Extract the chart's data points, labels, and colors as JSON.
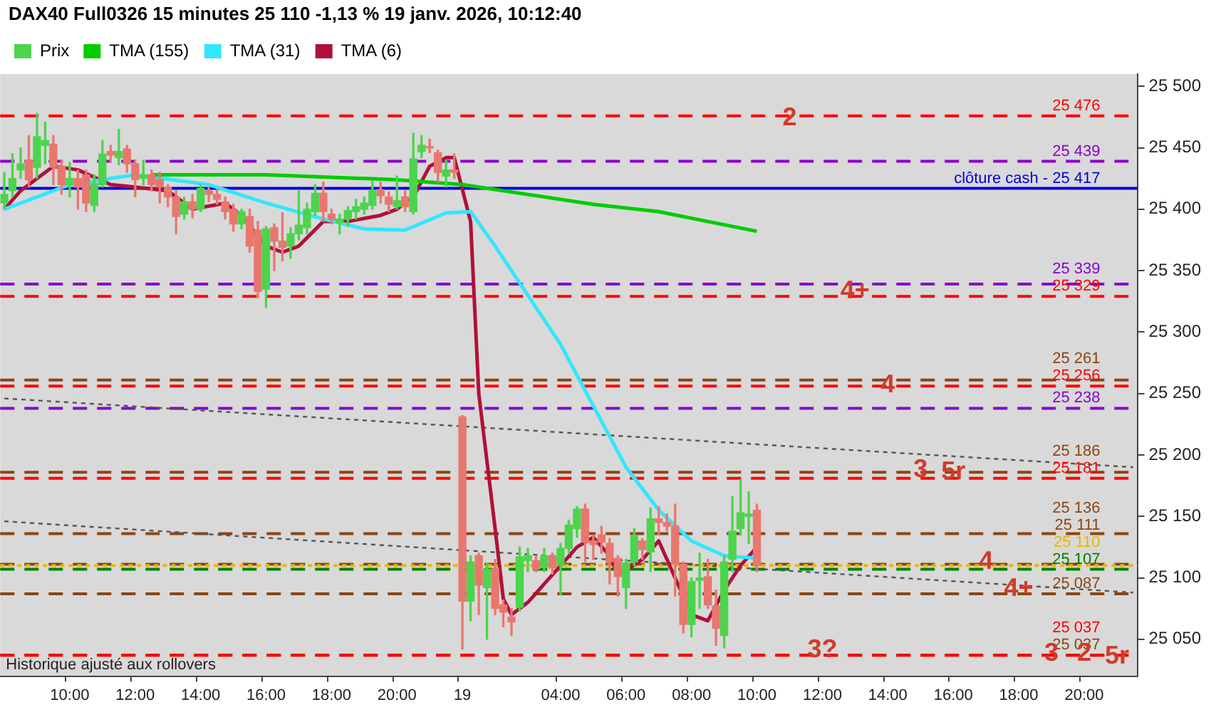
{
  "chart_data": {
    "type": "candlestick",
    "title": "DAX40 Full0326 15 minutes 25 110 -1,13 % 19 janv. 2026, 10:12:40",
    "categories": [
      null,
      null,
      null,
      null,
      null,
      null,
      null,
      null,
      "10:00",
      null,
      null,
      null,
      null,
      null,
      null,
      null,
      "12:00",
      null,
      null,
      null,
      null,
      null,
      null,
      null,
      "14:00",
      null,
      null,
      null,
      null,
      null,
      null,
      null,
      "16:00",
      null,
      null,
      null,
      null,
      null,
      null,
      null,
      "18:00",
      null,
      null,
      null,
      null,
      null,
      null,
      null,
      "20:00",
      null,
      null,
      null,
      null,
      null,
      null,
      null,
      "19",
      null,
      null,
      null,
      null,
      null,
      null,
      null,
      null,
      null,
      null,
      null,
      "04:00",
      null,
      null,
      null,
      null,
      null,
      null,
      null,
      "06:00",
      null,
      null,
      null,
      null,
      null,
      null,
      null,
      "08:00",
      null,
      null,
      null,
      null,
      null,
      null,
      null,
      "10:00",
      null,
      null,
      null,
      null,
      null,
      null,
      null,
      "12:00",
      null,
      null,
      null,
      null,
      null,
      null,
      null,
      "14:00",
      null,
      null,
      null,
      null,
      null,
      null,
      null,
      "16:00",
      null,
      null,
      null,
      null,
      null,
      null,
      null,
      "18:00",
      null,
      null,
      null,
      null,
      null,
      null,
      null,
      "20:00",
      null,
      null,
      null,
      null,
      null,
      null
    ],
    "ylim": [
      25020,
      25510
    ],
    "yticks": [
      {
        "value": 25050,
        "label": "25 050"
      },
      {
        "value": 25100,
        "label": "25 100"
      },
      {
        "value": 25150,
        "label": "25 150"
      },
      {
        "value": 25200,
        "label": "25 200"
      },
      {
        "value": 25250,
        "label": "25 250"
      },
      {
        "value": 25300,
        "label": "25 300"
      },
      {
        "value": 25350,
        "label": "25 350"
      },
      {
        "value": 25400,
        "label": "25 400"
      },
      {
        "value": 25450,
        "label": "25 450"
      },
      {
        "value": 25500,
        "label": "25 500"
      }
    ],
    "legend": "top left",
    "marker": "none",
    "series": [
      {
        "name": "Prix",
        "ohlc": [
          [
            25405,
            25430,
            25400,
            25412
          ],
          [
            25415,
            25445,
            25410,
            25425
          ],
          [
            25432,
            25450,
            25425,
            25437
          ],
          [
            25440,
            25460,
            25418,
            25424
          ],
          [
            25434,
            25478,
            25425,
            25459
          ],
          [
            25452,
            25471,
            25437,
            25456
          ],
          [
            25453,
            25460,
            25420,
            25434
          ],
          [
            25435,
            25440,
            25412,
            25420
          ],
          [
            25420,
            25438,
            25410,
            25425
          ],
          [
            25425,
            25432,
            25400,
            25418
          ],
          [
            25428,
            25432,
            25398,
            25405
          ],
          [
            25403,
            25428,
            25398,
            25421
          ],
          [
            25420,
            25456,
            25418,
            25445
          ],
          [
            25447,
            25452,
            25438,
            25444
          ],
          [
            25442,
            25465,
            25436,
            25447
          ],
          [
            25449,
            25452,
            25430,
            25437
          ],
          [
            25437,
            25440,
            25410,
            25424
          ],
          [
            25425,
            25440,
            25420,
            25428
          ],
          [
            25428,
            25432,
            25415,
            25420
          ],
          [
            25424,
            25430,
            25405,
            25418
          ],
          [
            25418,
            25420,
            25402,
            25410
          ],
          [
            25410,
            25415,
            25380,
            25394
          ],
          [
            25396,
            25410,
            25392,
            25406
          ],
          [
            25406,
            25412,
            25393,
            25400
          ],
          [
            25400,
            25420,
            25398,
            25417
          ],
          [
            25415,
            25418,
            25406,
            25412
          ],
          [
            25412,
            25416,
            25404,
            25408
          ],
          [
            25406,
            25410,
            25392,
            25398
          ],
          [
            25400,
            25404,
            25382,
            25388
          ],
          [
            25388,
            25400,
            25384,
            25398
          ],
          [
            25394,
            25400,
            25365,
            25370
          ],
          [
            25383,
            25390,
            25328,
            25333
          ],
          [
            25335,
            25386,
            25320,
            25384
          ],
          [
            25385,
            25388,
            25350,
            25374
          ],
          [
            25374,
            25397,
            25358,
            25369
          ],
          [
            25370,
            25385,
            25360,
            25380
          ],
          [
            25380,
            25415,
            25375,
            25387
          ],
          [
            25385,
            25405,
            25380,
            25400
          ],
          [
            25398,
            25420,
            25395,
            25413
          ],
          [
            25413,
            25422,
            25390,
            25398
          ],
          [
            25396,
            25400,
            25388,
            25392
          ],
          [
            25389,
            25396,
            25380,
            25392
          ],
          [
            25392,
            25402,
            25386,
            25399
          ],
          [
            25398,
            25408,
            25392,
            25402
          ],
          [
            25400,
            25410,
            25396,
            25405
          ],
          [
            25403,
            25423,
            25400,
            25415
          ],
          [
            25416,
            25422,
            25405,
            25411
          ],
          [
            25410,
            25414,
            25398,
            25404
          ],
          [
            25402,
            25427,
            25400,
            25407
          ],
          [
            25410,
            25415,
            25398,
            25402
          ],
          [
            25398,
            25462,
            25396,
            25441
          ],
          [
            25447,
            25460,
            25442,
            25452
          ],
          [
            25451,
            25457,
            25446,
            25450
          ],
          [
            25446,
            25448,
            25422,
            25430
          ],
          [
            25427,
            25440,
            25418,
            25432
          ],
          [
            25432,
            25445,
            25425,
            25430
          ],
          [
            25231,
            25232,
            25042,
            25081
          ],
          [
            25081,
            25118,
            25065,
            25113
          ],
          [
            25118,
            25120,
            25070,
            25094
          ],
          [
            25092,
            25112,
            25050,
            25107
          ],
          [
            25108,
            25115,
            25070,
            25075
          ],
          [
            25078,
            25082,
            25060,
            25072
          ],
          [
            25068,
            25075,
            25053,
            25064
          ],
          [
            25076,
            25125,
            25073,
            25117
          ],
          [
            25114,
            25124,
            25105,
            25118
          ],
          [
            25114,
            25118,
            25105,
            25107
          ],
          [
            25109,
            25124,
            25105,
            25118
          ],
          [
            25118,
            25120,
            25103,
            25108
          ],
          [
            25110,
            25128,
            25086,
            25124
          ],
          [
            25124,
            25147,
            25120,
            25143
          ],
          [
            25140,
            25158,
            25133,
            25156
          ],
          [
            25156,
            25160,
            25113,
            25129
          ],
          [
            25130,
            25135,
            25115,
            25127
          ],
          [
            25135,
            25142,
            25120,
            25129
          ],
          [
            25128,
            25132,
            25095,
            25113
          ],
          [
            25116,
            25118,
            25085,
            25101
          ],
          [
            25092,
            25115,
            25075,
            25112
          ],
          [
            25113,
            25140,
            25110,
            25134
          ],
          [
            25130,
            25132,
            25115,
            25123
          ],
          [
            25121,
            25157,
            25105,
            25148
          ],
          [
            25148,
            25158,
            25135,
            25145
          ],
          [
            25145,
            25152,
            25138,
            25142
          ],
          [
            25142,
            25160,
            25085,
            25111
          ],
          [
            25111,
            25113,
            25055,
            25062
          ],
          [
            25062,
            25100,
            25052,
            25097
          ],
          [
            25098,
            25120,
            25075,
            25100
          ],
          [
            25101,
            25115,
            25075,
            25078
          ],
          [
            25077,
            25090,
            25045,
            25059
          ],
          [
            25053,
            25118,
            25043,
            25113
          ],
          [
            25115,
            25166,
            25105,
            25138
          ],
          [
            25140,
            25180,
            25135,
            25153
          ],
          [
            25150,
            25170,
            25128,
            25152
          ],
          [
            25155,
            25160,
            25105,
            25110
          ],
          null,
          null,
          null,
          null,
          null,
          null,
          null,
          null,
          null,
          null,
          null,
          null,
          null,
          null,
          null,
          null,
          null,
          null,
          null,
          null,
          null,
          null,
          null,
          null,
          null,
          null,
          null,
          null,
          null,
          null,
          null,
          null,
          null,
          null,
          null,
          null,
          null,
          null,
          null,
          null,
          null,
          null,
          null,
          null,
          null,
          null
        ],
        "colors": [
          "#4cd44c",
          "#4cd44c",
          "#4cd44c",
          "#e8776e",
          "#4cd44c",
          "#4cd44c",
          "#e8776e",
          "#e8776e",
          "#4cd44c",
          "#e8776e",
          "#e8776e",
          "#4cd44c",
          "#4cd44c",
          "#e8776e",
          "#4cd44c",
          "#e8776e",
          "#e8776e",
          "#4cd44c",
          "#e8776e",
          "#e8776e",
          "#e8776e",
          "#e8776e",
          "#4cd44c",
          "#e8776e",
          "#4cd44c",
          "#e8776e",
          "#e8776e",
          "#e8776e",
          "#e8776e",
          "#4cd44c",
          "#e8776e",
          "#e8776e",
          "#4cd44c",
          "#e8776e",
          "#e8776e",
          "#4cd44c",
          "#4cd44c",
          "#4cd44c",
          "#4cd44c",
          "#e8776e",
          "#e8776e",
          "#4cd44c",
          "#4cd44c",
          "#4cd44c",
          "#4cd44c",
          "#4cd44c",
          "#e8776e",
          "#e8776e",
          "#4cd44c",
          "#e8776e",
          "#4cd44c",
          "#4cd44c",
          "#e8776e",
          "#e8776e",
          "#4cd44c",
          "#e8776e",
          "#e8776e",
          "#4cd44c",
          "#e8776e",
          "#4cd44c",
          "#e8776e",
          "#e8776e",
          "#e8776e",
          "#4cd44c",
          "#4cd44c",
          "#e8776e",
          "#4cd44c",
          "#e8776e",
          "#4cd44c",
          "#4cd44c",
          "#4cd44c",
          "#e8776e",
          "#e8776e",
          "#e8776e",
          "#e8776e",
          "#e8776e",
          "#4cd44c",
          "#4cd44c",
          "#e8776e",
          "#4cd44c",
          "#e8776e",
          "#e8776e",
          "#e8776e",
          "#e8776e",
          "#4cd44c",
          "#4cd44c",
          "#e8776e",
          "#e8776e",
          "#4cd44c",
          "#4cd44c",
          "#4cd44c",
          "#4cd44c",
          "#e8776e",
          null,
          null,
          null,
          null,
          null,
          null,
          null,
          null,
          null,
          null,
          null,
          null,
          null,
          null,
          null,
          null,
          null,
          null,
          null,
          null,
          null,
          null,
          null,
          null,
          null,
          null,
          null,
          null,
          null,
          null,
          null,
          null,
          null,
          null,
          null,
          null,
          null,
          null,
          null,
          null,
          null,
          null,
          null,
          null,
          null,
          null
        ]
      },
      {
        "name": "TMA (155)",
        "type": "line",
        "color": "#00cc00",
        "values": [
          null,
          null,
          null,
          null,
          null,
          null,
          null,
          null,
          null,
          null,
          null,
          null,
          null,
          null,
          null,
          null,
          null,
          null,
          25428,
          null,
          null,
          null,
          null,
          null,
          null,
          null,
          null,
          null,
          null,
          null,
          null,
          null,
          25428,
          null,
          null,
          null,
          null,
          null,
          null,
          null,
          null,
          null,
          null,
          null,
          null,
          null,
          null,
          null,
          25424,
          null,
          null,
          null,
          null,
          null,
          null,
          null,
          25420,
          null,
          null,
          null,
          null,
          null,
          null,
          null,
          25412,
          null,
          null,
          null,
          null,
          null,
          null,
          null,
          25404,
          null,
          null,
          null,
          null,
          null,
          null,
          null,
          25398,
          null,
          null,
          null,
          null,
          null,
          25390,
          null,
          null,
          null,
          null,
          null,
          25382,
          null,
          null,
          null,
          null,
          null,
          null,
          null,
          null,
          null,
          null,
          null,
          null,
          null,
          null,
          null,
          null,
          null,
          null,
          null,
          null,
          null,
          null,
          null,
          null,
          null,
          null,
          null,
          null,
          null,
          null,
          null,
          null,
          null,
          null,
          null,
          null,
          null,
          null,
          null,
          null,
          null,
          null,
          null,
          null,
          null,
          null
        ]
      },
      {
        "name": "TMA (31)",
        "type": "line",
        "color": "#33e6ff",
        "values": [
          25400,
          null,
          null,
          null,
          null,
          null,
          null,
          null,
          25420,
          null,
          null,
          null,
          null,
          null,
          null,
          null,
          25428,
          null,
          null,
          null,
          null,
          null,
          null,
          null,
          null,
          25420,
          null,
          null,
          null,
          null,
          null,
          null,
          25405,
          null,
          null,
          null,
          null,
          null,
          null,
          25392,
          null,
          null,
          null,
          null,
          25384,
          null,
          null,
          null,
          null,
          25383,
          null,
          null,
          null,
          null,
          25397,
          null,
          null,
          25398,
          null,
          null,
          25370,
          null,
          null,
          null,
          25330,
          null,
          null,
          null,
          25290,
          null,
          null,
          null,
          25240,
          null,
          null,
          null,
          25190,
          null,
          null,
          null,
          25155,
          null,
          null,
          null,
          25130,
          null,
          null,
          null,
          25118,
          null,
          null,
          null,
          25116,
          null,
          null,
          null,
          null,
          null,
          null,
          null,
          null,
          null,
          null,
          null,
          null,
          null,
          null,
          null,
          null,
          null,
          null,
          null,
          null,
          null,
          null,
          null,
          null,
          null,
          null,
          null,
          null,
          null,
          null,
          null,
          null,
          null,
          null,
          null,
          null,
          null,
          null,
          null,
          null,
          null,
          null,
          null,
          null,
          null,
          null
        ]
      },
      {
        "name": "TMA (6)",
        "type": "line",
        "color": "#b0103a",
        "values": [
          25400,
          null,
          25415,
          null,
          null,
          null,
          25435,
          null,
          null,
          25432,
          null,
          null,
          null,
          25420,
          null,
          null,
          25418,
          null,
          null,
          null,
          25415,
          null,
          null,
          25400,
          null,
          null,
          null,
          25405,
          null,
          25395,
          null,
          null,
          25370,
          null,
          25365,
          null,
          25370,
          null,
          null,
          25390,
          null,
          null,
          25390,
          null,
          null,
          null,
          25395,
          null,
          25400,
          null,
          25410,
          null,
          25435,
          null,
          25442,
          25442,
          null,
          25390,
          25250,
          null,
          25140,
          25083,
          25070,
          null,
          25080,
          null,
          25095,
          null,
          25110,
          null,
          25125,
          null,
          25133,
          null,
          25118,
          25102,
          null,
          null,
          25115,
          null,
          25130,
          null,
          25100,
          null,
          25070,
          null,
          25065,
          null,
          25090,
          null,
          25110,
          null,
          25125,
          null,
          null,
          null,
          null,
          null,
          null,
          null,
          null,
          null,
          null,
          null,
          null,
          null,
          null,
          null,
          null,
          null,
          null,
          null,
          null,
          null,
          null,
          null,
          null,
          null,
          null,
          null,
          null,
          null,
          null,
          null,
          null,
          null,
          null,
          null,
          null,
          null,
          null,
          null,
          null,
          null,
          null,
          null,
          null,
          null,
          null
        ]
      },
      {
        "type": "line",
        "color": "#555555",
        "line_style": "dotted",
        "values": [
          25246,
          null,
          null,
          null,
          null,
          null,
          null,
          null,
          null,
          null,
          null,
          null,
          null,
          null,
          null,
          null,
          null,
          null,
          null,
          null,
          null,
          null,
          null,
          null,
          null,
          null,
          null,
          null,
          null,
          null,
          null,
          null,
          null,
          null,
          null,
          null,
          null,
          null,
          null,
          null,
          null,
          null,
          null,
          null,
          null,
          null,
          null,
          null,
          null,
          null,
          null,
          null,
          null,
          null,
          null,
          null,
          null,
          null,
          null,
          null,
          null,
          null,
          null,
          null,
          null,
          null,
          null,
          null,
          null,
          null,
          null,
          null,
          null,
          null,
          null,
          null,
          null,
          null,
          null,
          null,
          null,
          null,
          null,
          null,
          null,
          null,
          null,
          null,
          null,
          null,
          null,
          null,
          null,
          null,
          null,
          null,
          null,
          null,
          null,
          null,
          null,
          null,
          null,
          null,
          null,
          null,
          null,
          null,
          null,
          null,
          null,
          null,
          null,
          null,
          null,
          null,
          null,
          null,
          null,
          null,
          null,
          null,
          null,
          null,
          null,
          null,
          null,
          null,
          null,
          null,
          null,
          null,
          null,
          null,
          null,
          null,
          null,
          null,
          25190
        ]
      },
      {
        "type": "line",
        "color": "#555555",
        "line_style": "dotted",
        "values": [
          25146,
          null,
          null,
          null,
          null,
          null,
          null,
          null,
          null,
          null,
          null,
          null,
          null,
          null,
          null,
          null,
          null,
          null,
          null,
          null,
          null,
          null,
          null,
          null,
          null,
          null,
          null,
          null,
          null,
          null,
          null,
          null,
          null,
          null,
          null,
          null,
          null,
          null,
          null,
          null,
          null,
          null,
          null,
          null,
          null,
          null,
          null,
          null,
          null,
          null,
          null,
          null,
          null,
          null,
          null,
          null,
          null,
          null,
          null,
          null,
          null,
          null,
          null,
          null,
          null,
          null,
          null,
          null,
          null,
          null,
          null,
          null,
          null,
          null,
          null,
          null,
          null,
          null,
          null,
          null,
          null,
          null,
          null,
          null,
          null,
          null,
          null,
          null,
          null,
          null,
          null,
          null,
          null,
          null,
          null,
          null,
          null,
          null,
          null,
          null,
          null,
          null,
          null,
          null,
          null,
          null,
          null,
          null,
          null,
          null,
          null,
          null,
          null,
          null,
          null,
          null,
          null,
          null,
          null,
          null,
          null,
          null,
          null,
          null,
          null,
          null,
          null,
          null,
          null,
          null,
          null,
          null,
          null,
          null,
          null,
          null,
          null,
          null,
          25088
        ]
      }
    ],
    "ref_lines": [
      {
        "axis": "y",
        "value": 25476,
        "label": "25 476",
        "color": "#ff0000",
        "line_style": "dashed"
      },
      {
        "axis": "y",
        "value": 25439,
        "label": "25 439",
        "color": "#8800cc",
        "line_style": "dashed"
      },
      {
        "axis": "y",
        "value": 25417,
        "label": "clôture cash - 25 417",
        "color": "#0000dd",
        "line_style": "solid"
      },
      {
        "axis": "y",
        "value": 25339,
        "label": "25 339",
        "color": "#8800cc",
        "line_style": "dashed"
      },
      {
        "axis": "y",
        "value": 25329,
        "label": "25 329",
        "color": "#ff0000",
        "line_style": "dashed"
      },
      {
        "axis": "y",
        "value": 25261,
        "label": "25 261",
        "color": "#8b4513",
        "line_style": "dashed"
      },
      {
        "axis": "y",
        "value": 25256,
        "label": "25 256",
        "color": "#ff0000",
        "line_style": "dashed"
      },
      {
        "axis": "y",
        "value": 25238,
        "label": "25 238",
        "color": "#8800cc",
        "line_style": "dashed"
      },
      {
        "axis": "y",
        "value": 25186,
        "label": "25 186",
        "color": "#8b4513",
        "line_style": "dashed"
      },
      {
        "axis": "y",
        "value": 25181,
        "label": "25 181",
        "color": "#ff0000",
        "line_style": "dashed"
      },
      {
        "axis": "y",
        "value": 25136,
        "label": "25 136",
        "color": "#8b4513",
        "line_style": "dashed"
      },
      {
        "axis": "y",
        "value": 25111,
        "label": "25 111",
        "color": "#8b4513",
        "line_style": "dashed"
      },
      {
        "axis": "y",
        "value": 25110,
        "label": "25 110",
        "color": "#e6b800",
        "line_style": "dotted"
      },
      {
        "axis": "y",
        "value": 25107,
        "label": "25 107",
        "color": "#008000",
        "line_style": "dashed"
      },
      {
        "axis": "y",
        "value": 25087,
        "label": "25 087",
        "color": "#8b4513",
        "line_style": "dashed"
      },
      {
        "axis": "y",
        "value": 25037,
        "label": "25 037",
        "color": "#8b4513",
        "line_style": "dashed"
      },
      {
        "axis": "y",
        "value": 25037,
        "label": "25 037",
        "color": "#ff0000",
        "line_style": "dashed"
      }
    ],
    "annotations": [
      {
        "text": "2",
        "y": 25474
      },
      {
        "text": "3?",
        "y": 25041
      },
      {
        "text": "4+",
        "y": 25333
      },
      {
        "text": "4",
        "y": 25257
      },
      {
        "text": "3",
        "y": 25188
      },
      {
        "text": "5r",
        "y": 25186
      },
      {
        "text": "4",
        "y": 25113
      },
      {
        "text": "4+",
        "y": 25091
      },
      {
        "text": "3",
        "y": 25038
      },
      {
        "text": "2",
        "y": 25038
      },
      {
        "text": "5r",
        "y": 25036
      },
      "Historique ajusté aux rollovers"
    ]
  }
}
